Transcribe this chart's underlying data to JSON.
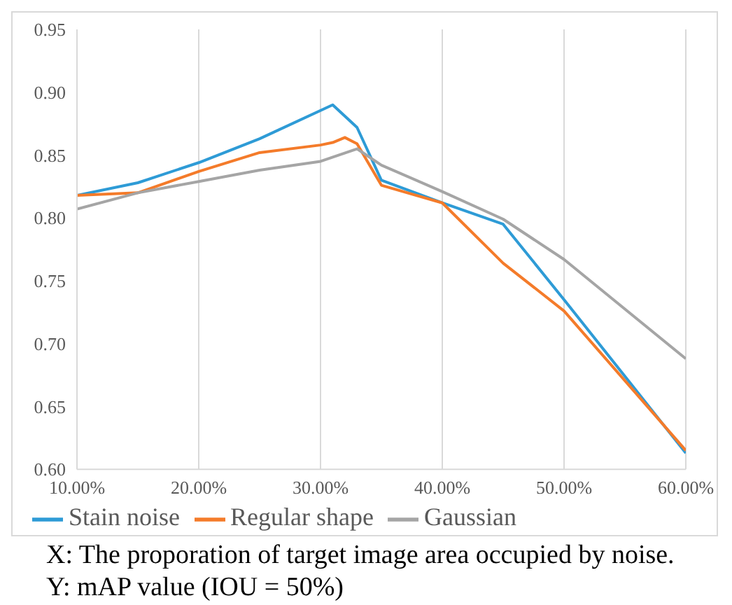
{
  "chart_data": {
    "type": "line",
    "xlim": [
      10,
      60
    ],
    "ylim": [
      0.6,
      0.95
    ],
    "xticks": [
      {
        "value": 10,
        "label": "10.00%"
      },
      {
        "value": 20,
        "label": "20.00%"
      },
      {
        "value": 30,
        "label": "30.00%"
      },
      {
        "value": 40,
        "label": "40.00%"
      },
      {
        "value": 50,
        "label": "50.00%"
      },
      {
        "value": 60,
        "label": "60.00%"
      }
    ],
    "yticks": [
      {
        "value": 0.6,
        "label": "0.60"
      },
      {
        "value": 0.65,
        "label": "0.65"
      },
      {
        "value": 0.7,
        "label": "0.70"
      },
      {
        "value": 0.75,
        "label": "0.75"
      },
      {
        "value": 0.8,
        "label": "0.80"
      },
      {
        "value": 0.85,
        "label": "0.85"
      },
      {
        "value": 0.9,
        "label": "0.90"
      },
      {
        "value": 0.95,
        "label": "0.95"
      }
    ],
    "grid": "x",
    "legend": "bottom",
    "marker": "none",
    "line_style": "solid",
    "series": [
      {
        "name": "Stain noise",
        "color": "#2e9bd6",
        "x": [
          10,
          15,
          20,
          25,
          31,
          33,
          35,
          40,
          45,
          50,
          60
        ],
        "values": [
          0.818,
          0.828,
          0.844,
          0.863,
          0.89,
          0.872,
          0.83,
          0.812,
          0.795,
          0.735,
          0.613
        ]
      },
      {
        "name": "Regular shape",
        "color": "#f47b2a",
        "x": [
          10,
          15,
          20,
          25,
          30,
          31,
          32,
          33,
          35,
          40,
          45,
          50,
          60
        ],
        "values": [
          0.818,
          0.82,
          0.837,
          0.852,
          0.858,
          0.86,
          0.864,
          0.859,
          0.826,
          0.812,
          0.764,
          0.726,
          0.615
        ]
      },
      {
        "name": "Gaussian",
        "color": "#a5a5a5",
        "x": [
          10,
          15,
          20,
          25,
          30,
          33,
          35,
          40,
          45,
          50,
          60
        ],
        "values": [
          0.807,
          0.82,
          0.829,
          0.838,
          0.845,
          0.855,
          0.842,
          0.821,
          0.799,
          0.767,
          0.688
        ]
      }
    ],
    "annotations": [
      "X: The proporation of target image area occupied by noise.",
      "Y: mAP value (IOU = 50%)"
    ]
  }
}
